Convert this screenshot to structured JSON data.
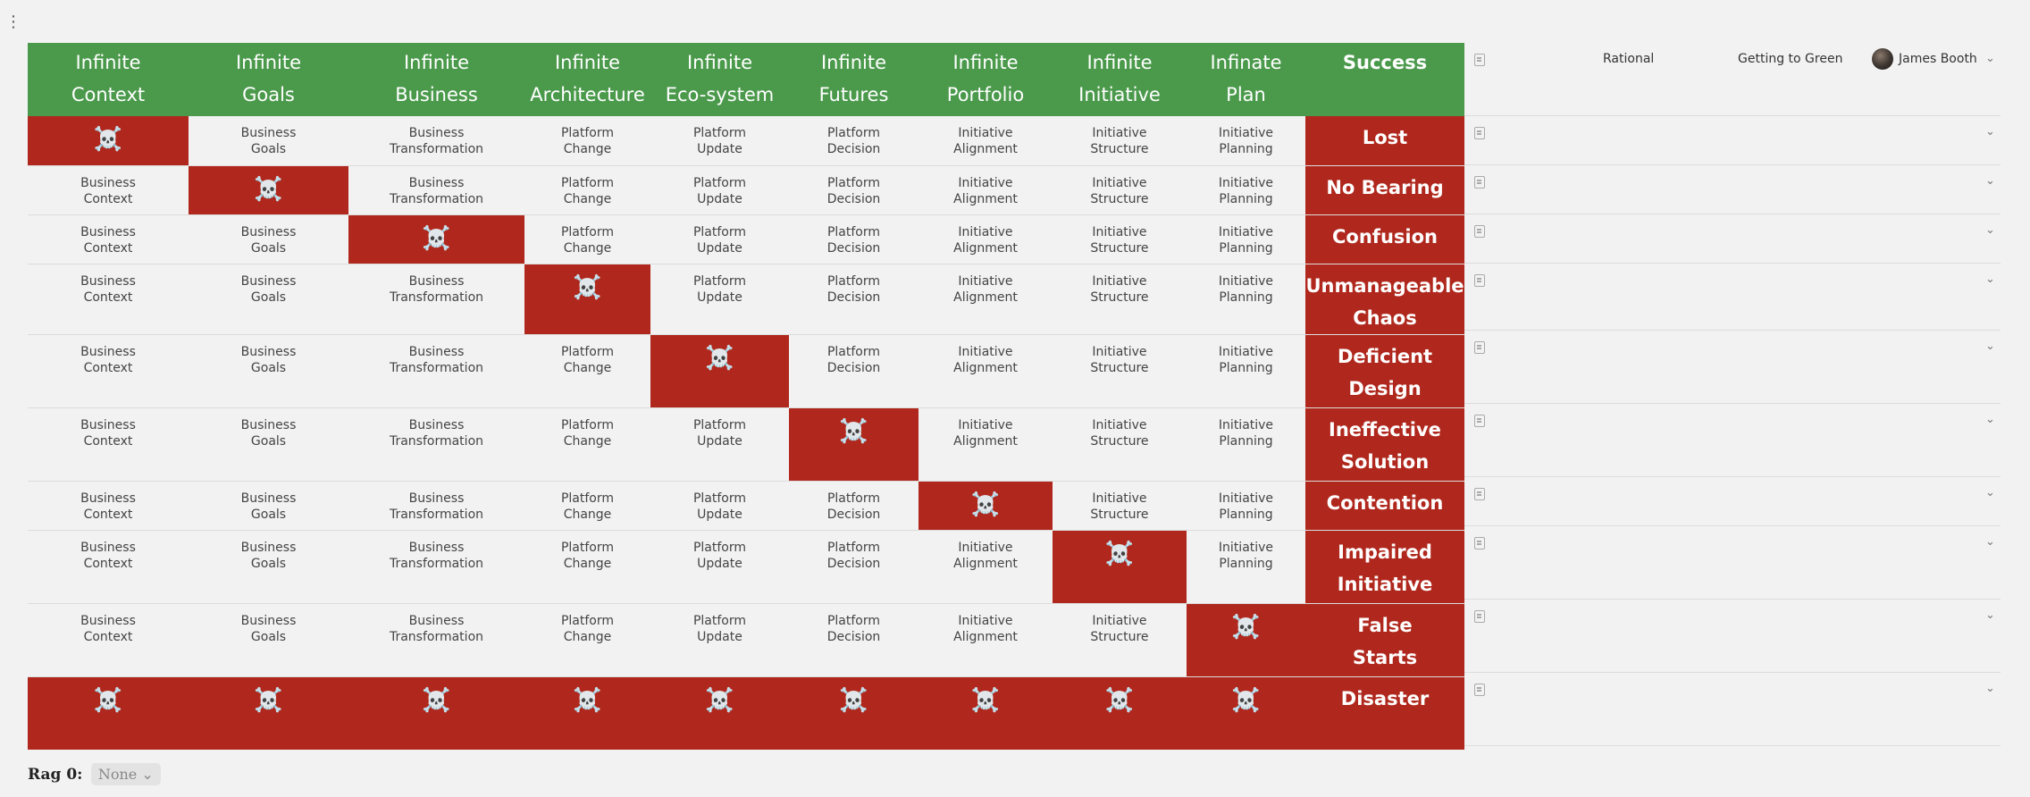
{
  "header": {
    "columns": [
      [
        "Infinite",
        "Context"
      ],
      [
        "Infinite",
        "Goals"
      ],
      [
        "Infinite",
        "Business"
      ],
      [
        "Infinite",
        "Architecture"
      ],
      [
        "Infinite",
        "Eco-system"
      ],
      [
        "Infinite",
        "Futures"
      ],
      [
        "Infinite",
        "Portfolio"
      ],
      [
        "Infinite",
        "Initiative"
      ],
      [
        "Infinate",
        "Plan"
      ]
    ],
    "success": "Success"
  },
  "cells": [
    [
      "Business",
      "Context"
    ],
    [
      "Business",
      "Goals"
    ],
    [
      "Business",
      "Transformation"
    ],
    [
      "Platform",
      "Change"
    ],
    [
      "Platform",
      "Update"
    ],
    [
      "Platform",
      "Decision"
    ],
    [
      "Initiative",
      "Alignment"
    ],
    [
      "Initiative",
      "Structure"
    ],
    [
      "Initiative",
      "Planning"
    ]
  ],
  "skull": "☠️",
  "rows": [
    {
      "success": [
        "Lost"
      ]
    },
    {
      "success": [
        "No Bearing"
      ]
    },
    {
      "success": [
        "Confusion"
      ]
    },
    {
      "success": [
        "Unmanageable",
        "Chaos"
      ]
    },
    {
      "success": [
        "Deficient",
        "Design"
      ]
    },
    {
      "success": [
        "Ineffective",
        "Solution"
      ]
    },
    {
      "success": [
        "Contention"
      ]
    },
    {
      "success": [
        "Impaired",
        "Initiative"
      ]
    },
    {
      "success": [
        "False",
        "Starts"
      ]
    },
    {
      "success": [
        "Disaster"
      ]
    }
  ],
  "side": {
    "rational": "Rational",
    "getting_to_green": "Getting to Green",
    "owner": "James Booth"
  },
  "footer": {
    "rag_label": "Rag 0:",
    "rag_value": "None"
  },
  "colors": {
    "header_green": "#4b9a4c",
    "fail_red": "#b0281d"
  }
}
